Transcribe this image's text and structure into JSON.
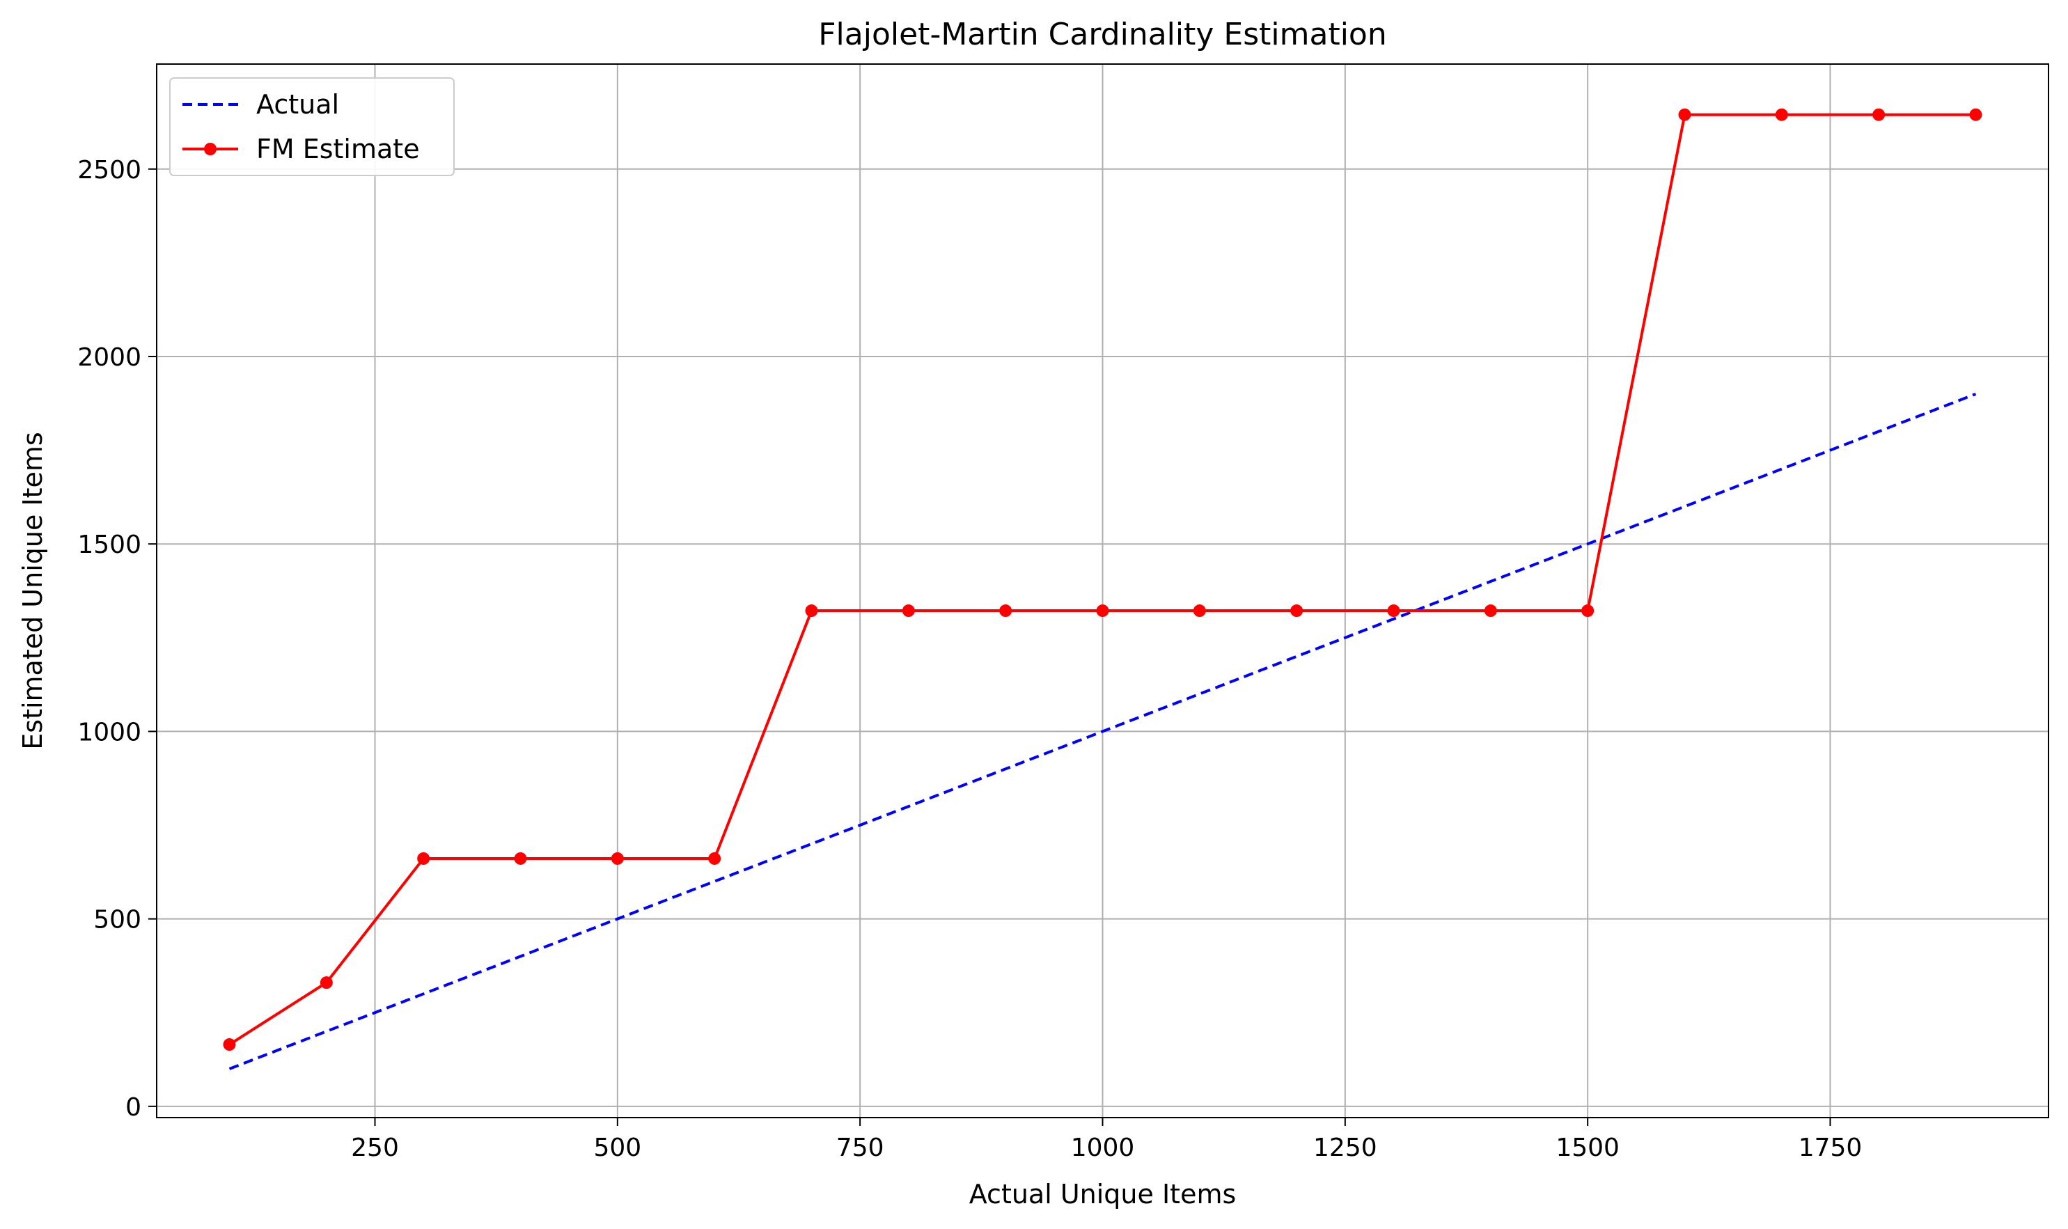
{
  "chart_data": {
    "type": "line",
    "title": "Flajolet-Martin Cardinality Estimation",
    "xlabel": "Actual Unique Items",
    "ylabel": "Estimated Unique Items",
    "xlim": [
      25,
      1975
    ],
    "ylim": [
      -30,
      2780
    ],
    "xticks": [
      250,
      500,
      750,
      1000,
      1250,
      1500,
      1750
    ],
    "yticks": [
      0,
      500,
      1000,
      1500,
      2000,
      2500
    ],
    "grid": true,
    "legend_position": "top-left",
    "x": [
      100,
      200,
      300,
      400,
      500,
      600,
      700,
      800,
      900,
      1000,
      1100,
      1200,
      1300,
      1400,
      1500,
      1600,
      1700,
      1800,
      1900
    ],
    "series": [
      {
        "name": "Actual",
        "style": "dashed",
        "color": "#0000ff",
        "values": [
          100,
          200,
          300,
          400,
          500,
          600,
          700,
          800,
          900,
          1000,
          1100,
          1200,
          1300,
          1400,
          1500,
          1600,
          1700,
          1800,
          1900
        ]
      },
      {
        "name": "FM Estimate",
        "style": "solid-markers",
        "color": "#ff0000",
        "values": [
          165,
          330,
          661,
          661,
          661,
          661,
          1322,
          1322,
          1322,
          1322,
          1322,
          1322,
          1322,
          1322,
          1322,
          2645,
          2645,
          2645,
          2645
        ]
      }
    ]
  }
}
